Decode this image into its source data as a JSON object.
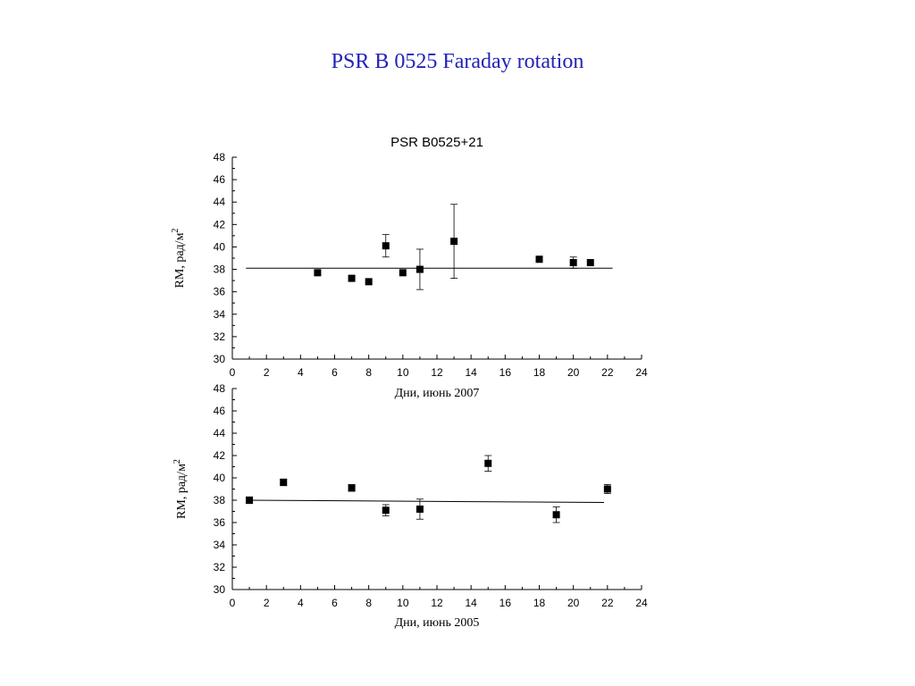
{
  "slide": {
    "title": "PSR B 0525 Faraday rotation"
  },
  "chart_data": [
    {
      "type": "scatter",
      "title": "PSR B0525+21",
      "xlabel": "Дни, июнь 2007",
      "ylabel": "RM, рад/м",
      "ylabel_sup": "2",
      "xlim": [
        0,
        24
      ],
      "ylim": [
        30,
        48
      ],
      "xticks": [
        0,
        2,
        4,
        6,
        8,
        10,
        12,
        14,
        16,
        18,
        20,
        22,
        24
      ],
      "yticks": [
        30,
        32,
        34,
        36,
        38,
        40,
        42,
        44,
        46,
        48
      ],
      "grid": false,
      "marker_color": "#000000",
      "points": [
        {
          "x": 5,
          "y": 37.7
        },
        {
          "x": 7,
          "y": 37.2
        },
        {
          "x": 8,
          "y": 36.9
        },
        {
          "x": 9,
          "y": 40.1,
          "err": 1.0
        },
        {
          "x": 10,
          "y": 37.7
        },
        {
          "x": 11,
          "y": 38.0,
          "err": 1.8
        },
        {
          "x": 13,
          "y": 40.5,
          "err": 3.3
        },
        {
          "x": 18,
          "y": 38.9
        },
        {
          "x": 20,
          "y": 38.6,
          "err": 0.5
        },
        {
          "x": 21,
          "y": 38.6
        }
      ],
      "fit_line": {
        "x": [
          0.8,
          22.3
        ],
        "y": [
          38.1,
          38.1
        ]
      }
    },
    {
      "type": "scatter",
      "title": "",
      "xlabel": "Дни, июнь 2005",
      "ylabel": "RM, рад/м",
      "ylabel_sup": "2",
      "xlim": [
        0,
        24
      ],
      "ylim": [
        30,
        48
      ],
      "xticks": [
        0,
        2,
        4,
        6,
        8,
        10,
        12,
        14,
        16,
        18,
        20,
        22,
        24
      ],
      "yticks": [
        30,
        32,
        34,
        36,
        38,
        40,
        42,
        44,
        46,
        48
      ],
      "grid": false,
      "marker_color": "#000000",
      "points": [
        {
          "x": 1,
          "y": 38.0,
          "err": 0.3
        },
        {
          "x": 3,
          "y": 39.6,
          "err": 0.3
        },
        {
          "x": 7,
          "y": 39.1,
          "err": 0.3
        },
        {
          "x": 9,
          "y": 37.1,
          "err": 0.5
        },
        {
          "x": 11,
          "y": 37.2,
          "err": 0.9
        },
        {
          "x": 15,
          "y": 41.3,
          "err": 0.7
        },
        {
          "x": 19,
          "y": 36.7,
          "err": 0.7
        },
        {
          "x": 22,
          "y": 39.0,
          "err": 0.4
        }
      ],
      "fit_line": {
        "x": [
          0.8,
          21.8
        ],
        "y": [
          38.0,
          37.8
        ]
      }
    }
  ]
}
